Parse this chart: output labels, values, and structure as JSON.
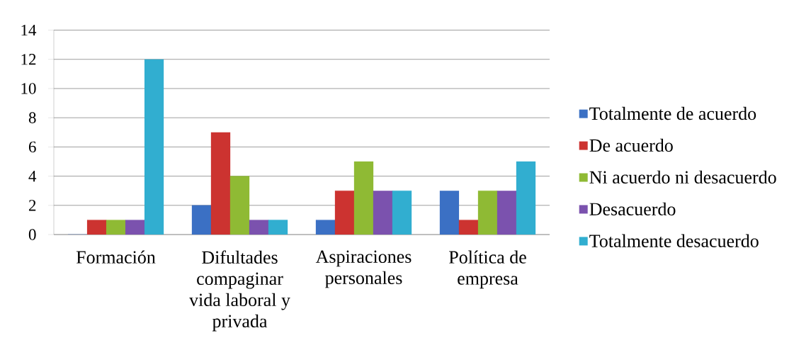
{
  "chart_data": {
    "type": "bar",
    "categories": [
      "Formación",
      "Difultades compaginar vida laboral y privada",
      "Aspiraciones personales",
      "Política de empresa"
    ],
    "series": [
      {
        "name": "Totalmente de acuerdo",
        "color": "#3b70c4",
        "values": [
          0,
          2,
          1,
          3
        ]
      },
      {
        "name": "De acuerdo",
        "color": "#cc3330",
        "values": [
          1,
          7,
          3,
          1
        ]
      },
      {
        "name": "Ni acuerdo ni desacuerdo",
        "color": "#8fba34",
        "values": [
          1,
          4,
          5,
          3
        ]
      },
      {
        "name": "Desacuerdo",
        "color": "#7b52ae",
        "values": [
          1,
          1,
          3,
          3
        ]
      },
      {
        "name": "Totalmente desacuerdo",
        "color": "#31aed0",
        "values": [
          12,
          1,
          3,
          5
        ]
      }
    ],
    "ylim": [
      0,
      14
    ],
    "yticks": [
      0,
      2,
      4,
      6,
      8,
      10,
      12,
      14
    ],
    "grid": "y",
    "legend": "right"
  }
}
